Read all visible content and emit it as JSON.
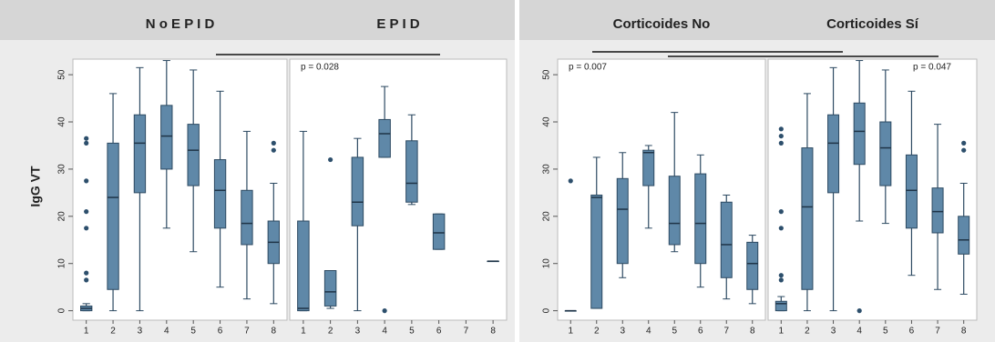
{
  "chart_data": [
    {
      "type": "box",
      "title": "N o   E P I D",
      "ylabel": "IgG VT",
      "ylim": [
        -2,
        53.3
      ],
      "yticks": [
        0,
        10,
        20,
        30,
        40,
        50
      ],
      "categories": [
        "1",
        "2",
        "3",
        "4",
        "5",
        "6",
        "7",
        "8"
      ],
      "color": "#5f88a8",
      "boxes": [
        {
          "min": 0,
          "q1": 0,
          "median": 0.5,
          "q3": 1,
          "max": 1.5,
          "outliers": [
            36.5,
            35.5,
            27.5,
            21,
            17.5,
            8,
            6.5
          ]
        },
        {
          "min": 0,
          "q1": 4.5,
          "median": 24,
          "q3": 35.5,
          "max": 46,
          "outliers": []
        },
        {
          "min": 0,
          "q1": 25,
          "median": 35.5,
          "q3": 41.5,
          "max": 51.5,
          "outliers": []
        },
        {
          "min": 17.5,
          "q1": 30,
          "median": 37,
          "q3": 43.5,
          "max": 53,
          "outliers": []
        },
        {
          "min": 12.5,
          "q1": 26.5,
          "median": 34,
          "q3": 39.5,
          "max": 51,
          "outliers": []
        },
        {
          "min": 5,
          "q1": 17.5,
          "median": 25.5,
          "q3": 32,
          "max": 46.5,
          "outliers": []
        },
        {
          "min": 2.5,
          "q1": 14,
          "median": 18.5,
          "q3": 25.5,
          "max": 38,
          "outliers": []
        },
        {
          "min": 1.5,
          "q1": 10,
          "median": 14.5,
          "q3": 19,
          "max": 27,
          "outliers": [
            35.5,
            34
          ]
        }
      ]
    },
    {
      "type": "box",
      "title": "E P I D",
      "annotation": "p = 0.028",
      "ylim": [
        -2,
        53.3
      ],
      "categories": [
        "1",
        "2",
        "3",
        "4",
        "5",
        "6",
        "7",
        "8"
      ],
      "color": "#5f88a8",
      "boxes": [
        {
          "min": 0,
          "q1": 0,
          "median": 0.5,
          "q3": 19,
          "max": 38,
          "outliers": []
        },
        {
          "min": 0.5,
          "q1": 1,
          "median": 4,
          "q3": 8.5,
          "max": 8.5,
          "outliers": [
            32
          ]
        },
        {
          "min": 0,
          "q1": 18,
          "median": 23,
          "q3": 32.5,
          "max": 36.5,
          "outliers": []
        },
        {
          "min": 32.5,
          "q1": 32.5,
          "median": 37.5,
          "q3": 40.5,
          "max": 47.5,
          "outliers": [
            0
          ]
        },
        {
          "min": 22.5,
          "q1": 23,
          "median": 27,
          "q3": 36,
          "max": 41.5,
          "outliers": []
        },
        {
          "min": 13,
          "q1": 13,
          "median": 16.5,
          "q3": 20.5,
          "max": 20.5,
          "outliers": []
        },
        null,
        {
          "min": 10.5,
          "q1": 10.5,
          "median": 10.5,
          "q3": 10.5,
          "max": 10.5,
          "outliers": []
        }
      ]
    },
    {
      "type": "box",
      "title": "Corticoides No",
      "annotation": "p = 0.007",
      "ylim": [
        -2,
        53.3
      ],
      "yticks": [
        0,
        10,
        20,
        30,
        40,
        50
      ],
      "categories": [
        "1",
        "2",
        "3",
        "4",
        "5",
        "6",
        "7",
        "8"
      ],
      "color": "#5f88a8",
      "boxes": [
        {
          "min": 0,
          "q1": 0,
          "median": 0,
          "q3": 0,
          "max": 0,
          "outliers": [
            27.5
          ]
        },
        {
          "min": 0.5,
          "q1": 0.5,
          "median": 24,
          "q3": 24.5,
          "max": 32.5,
          "outliers": []
        },
        {
          "min": 7,
          "q1": 10,
          "median": 21.5,
          "q3": 28,
          "max": 33.5,
          "outliers": []
        },
        {
          "min": 17.5,
          "q1": 26.5,
          "median": 33.5,
          "q3": 34,
          "max": 35,
          "outliers": []
        },
        {
          "min": 12.5,
          "q1": 14,
          "median": 18.5,
          "q3": 28.5,
          "max": 42,
          "outliers": []
        },
        {
          "min": 5,
          "q1": 10,
          "median": 18.5,
          "q3": 29,
          "max": 33,
          "outliers": []
        },
        {
          "min": 2.5,
          "q1": 7,
          "median": 14,
          "q3": 23,
          "max": 24.5,
          "outliers": []
        },
        {
          "min": 1.5,
          "q1": 4.5,
          "median": 10,
          "q3": 14.5,
          "max": 16,
          "outliers": []
        }
      ]
    },
    {
      "type": "box",
      "title": "Corticoides Sí",
      "annotation": "p = 0.047",
      "ylim": [
        -2,
        53.3
      ],
      "categories": [
        "1",
        "2",
        "3",
        "4",
        "5",
        "6",
        "7",
        "8"
      ],
      "color": "#5f88a8",
      "boxes": [
        {
          "min": 0,
          "q1": 0,
          "median": 1.5,
          "q3": 2,
          "max": 3,
          "outliers": [
            38.5,
            37,
            35.5,
            21,
            17.5,
            7.5,
            6.5
          ]
        },
        {
          "min": 0,
          "q1": 4.5,
          "median": 22,
          "q3": 34.5,
          "max": 46,
          "outliers": []
        },
        {
          "min": 0,
          "q1": 25,
          "median": 35.5,
          "q3": 41.5,
          "max": 51.5,
          "outliers": []
        },
        {
          "min": 19,
          "q1": 31,
          "median": 38,
          "q3": 44,
          "max": 53,
          "outliers": [
            0
          ]
        },
        {
          "min": 18.5,
          "q1": 26.5,
          "median": 34.5,
          "q3": 40,
          "max": 51,
          "outliers": []
        },
        {
          "min": 7.5,
          "q1": 17.5,
          "median": 25.5,
          "q3": 33,
          "max": 46.5,
          "outliers": []
        },
        {
          "min": 4.5,
          "q1": 16.5,
          "median": 21,
          "q3": 26,
          "max": 39.5,
          "outliers": []
        },
        {
          "min": 3.5,
          "q1": 12,
          "median": 15,
          "q3": 20,
          "max": 27,
          "outliers": [
            35.5,
            34
          ]
        }
      ]
    }
  ]
}
